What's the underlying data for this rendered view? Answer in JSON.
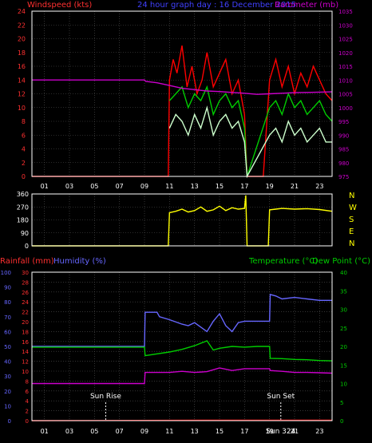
{
  "chart_data": [
    {
      "type": "line",
      "panel": "wind-baro",
      "title": "24 hour graph day : 16 December 2015",
      "left_axis_label": "Windspeed (kts)",
      "right_axis_label": "Barometer (mb)",
      "left_ticks": [
        0,
        2,
        4,
        6,
        8,
        10,
        12,
        14,
        16,
        18,
        20,
        22,
        24
      ],
      "right_ticks": [
        975,
        980,
        985,
        990,
        995,
        1000,
        1005,
        1010,
        1015,
        1020,
        1025,
        1030,
        1035
      ],
      "x_ticks": [
        "01",
        "03",
        "05",
        "07",
        "09",
        "11",
        "13",
        "15",
        "17",
        "19",
        "21",
        "23"
      ],
      "xlim": [
        0,
        24
      ],
      "ylim_left": [
        0,
        24
      ],
      "ylim_right": [
        975,
        1035
      ],
      "colors": {
        "gust": "#ff0000",
        "wind": "#00cc00",
        "wind_light": "#ccffcc",
        "baro": "#cc00cc",
        "frame": "#ffffff",
        "grid": "#555555"
      },
      "series": [
        {
          "name": "gust",
          "x": [
            0,
            10.9,
            11.0,
            11.3,
            11.6,
            12.0,
            12.4,
            12.8,
            13.2,
            13.6,
            14.0,
            14.5,
            15.0,
            15.5,
            16.0,
            16.5,
            17.0,
            17.2,
            17.6,
            18.0,
            18.5,
            19.0,
            19.5,
            20.0,
            20.5,
            21.0,
            21.5,
            22.0,
            22.5,
            23.0,
            23.5,
            24.0
          ],
          "y": [
            0,
            0,
            14,
            17,
            15,
            19,
            13,
            16,
            12,
            14,
            18,
            13,
            15,
            17,
            12,
            14,
            9,
            0,
            0,
            0,
            0,
            14,
            17,
            13,
            16,
            12,
            15,
            13,
            16,
            14,
            12,
            11
          ]
        },
        {
          "name": "wind",
          "x": [
            11.0,
            11.5,
            12.0,
            12.5,
            13.0,
            13.5,
            14.0,
            14.5,
            15.0,
            15.5,
            16.0,
            16.5,
            17.0,
            17.2,
            19.0,
            19.5,
            20.0,
            20.5,
            21.0,
            21.5,
            22.0,
            22.5,
            23.0,
            23.5,
            24.0
          ],
          "y": [
            11,
            12,
            13,
            10,
            12,
            11,
            13,
            9,
            11,
            12,
            10,
            11,
            7,
            0,
            10,
            11,
            9,
            12,
            10,
            11,
            9,
            10,
            11,
            9,
            8
          ]
        },
        {
          "name": "wind_light",
          "x": [
            11.0,
            11.5,
            12.0,
            12.5,
            13.0,
            13.5,
            14.0,
            14.5,
            15.0,
            15.5,
            16.0,
            16.5,
            17.0,
            17.2,
            19.0,
            19.5,
            20.0,
            20.5,
            21.0,
            21.5,
            22.0,
            22.5,
            23.0,
            23.5,
            24.0
          ],
          "y": [
            7,
            9,
            8,
            6,
            9,
            7,
            10,
            6,
            8,
            9,
            7,
            8,
            5,
            0,
            6,
            7,
            5,
            8,
            6,
            7,
            5,
            6,
            7,
            5,
            5
          ]
        },
        {
          "name": "baro",
          "x": [
            0,
            9.0,
            9.1,
            10.0,
            11.0,
            12.0,
            13.0,
            14.0,
            15.0,
            16.0,
            17.0,
            18.0,
            19.0,
            20.0,
            21.0,
            22.0,
            23.0,
            24.0
          ],
          "y": [
            1010,
            1010,
            1009.5,
            1009,
            1008,
            1007,
            1006.5,
            1006,
            1005.8,
            1005.5,
            1005.2,
            1004.8,
            1005.0,
            1005.2,
            1005.4,
            1005.5,
            1005.6,
            1005.7
          ]
        }
      ]
    },
    {
      "type": "line",
      "panel": "direction",
      "left_ticks": [
        0,
        90,
        180,
        270,
        360
      ],
      "right_labels": [
        "N",
        "W",
        "S",
        "E",
        "N"
      ],
      "xlim": [
        0,
        24
      ],
      "ylim": [
        0,
        360
      ],
      "colors": {
        "direction": "#ffff00"
      },
      "series": [
        {
          "name": "direction",
          "x": [
            0,
            10.9,
            11.0,
            11.5,
            12.0,
            12.5,
            13.0,
            13.5,
            14.0,
            14.5,
            15.0,
            15.5,
            16.0,
            16.5,
            17.0,
            17.1,
            17.2,
            18.9,
            19.0,
            19.5,
            20.0,
            21.0,
            22.0,
            23.0,
            24.0
          ],
          "y": [
            0,
            0,
            230,
            240,
            255,
            235,
            245,
            270,
            240,
            250,
            275,
            245,
            265,
            255,
            260,
            350,
            0,
            0,
            250,
            255,
            260,
            255,
            258,
            252,
            240
          ]
        }
      ]
    },
    {
      "type": "line",
      "panel": "rain-hum-temp",
      "left1_label": "Rainfall (mm)",
      "left2_label": "Humidity (%)",
      "right1_label": "Temperature (°C)",
      "right2_label": "Dew Point (°C)",
      "rain_ticks": [
        0,
        2,
        4,
        6,
        8,
        10,
        12,
        14,
        16,
        18,
        20,
        22,
        24,
        26,
        28,
        30
      ],
      "humidity_ticks": [
        0,
        10,
        20,
        30,
        40,
        50,
        60,
        70,
        80,
        90,
        100
      ],
      "temp_ticks": [
        0,
        5,
        10,
        15,
        20,
        25,
        30,
        35,
        40
      ],
      "x_ticks": [
        "01",
        "03",
        "05",
        "07",
        "09",
        "11",
        "13",
        "15",
        "17",
        "19",
        "21",
        "23"
      ],
      "xlim": [
        0,
        24
      ],
      "ylim_temp": [
        0,
        40
      ],
      "ylim_humidity": [
        0,
        100
      ],
      "sun_rise": {
        "label": "Sun Rise",
        "hour": 5.9
      },
      "sun_set": {
        "label": "Sun Set",
        "hour": 19.9
      },
      "sun_set_extra": {
        "label": "Sun 324",
        "hour": 19.9
      },
      "colors": {
        "humidity": "#6666ff",
        "temp": "#00cc00",
        "dew": "#cc00cc",
        "rain": "#ff0000",
        "rain_axis": "#ff3333",
        "hum_axis": "#6666ff",
        "temp_axis": "#00cc00"
      },
      "series": [
        {
          "name": "humidity",
          "x": [
            0,
            9.0,
            9.05,
            10.0,
            10.2,
            11.0,
            12.0,
            12.5,
            13.0,
            13.5,
            14.0,
            14.5,
            15.0,
            15.5,
            16.0,
            16.5,
            17.0,
            18.0,
            19.0,
            19.05,
            19.5,
            20.0,
            21.0,
            22.0,
            23.0,
            24.0
          ],
          "y": [
            50,
            50,
            73,
            73,
            70,
            68,
            65,
            64,
            66,
            63,
            60,
            67,
            72,
            64,
            60,
            66,
            67,
            67,
            67,
            85,
            84,
            82,
            83,
            82,
            81,
            81
          ]
        },
        {
          "name": "temp",
          "x": [
            0,
            9.0,
            9.05,
            11.0,
            12.0,
            13.0,
            14.0,
            14.5,
            15.0,
            16.0,
            17.0,
            18.0,
            19.0,
            19.05,
            20.0,
            21.0,
            22.0,
            23.0,
            24.0
          ],
          "y": [
            19.8,
            19.8,
            17.5,
            18.5,
            19.2,
            20.2,
            21.5,
            19,
            19.5,
            20.0,
            19.8,
            20.0,
            20.0,
            16.8,
            16.7,
            16.5,
            16.4,
            16.2,
            16.1
          ],
          "axis": "temp"
        },
        {
          "name": "dew",
          "x": [
            0,
            9.0,
            9.05,
            11.0,
            12.0,
            13.0,
            14.0,
            15.0,
            16.0,
            17.0,
            18.0,
            19.0,
            19.05,
            20.0,
            21.0,
            22.0,
            23.0,
            24.0
          ],
          "y": [
            10.0,
            10.0,
            13.0,
            13.0,
            13.3,
            13.0,
            13.2,
            14.2,
            13.5,
            14.0,
            14.0,
            14.0,
            13.5,
            13.3,
            13.0,
            13.0,
            12.9,
            12.8
          ],
          "axis": "temp"
        },
        {
          "name": "rain",
          "x": [
            0,
            14.0,
            24.0
          ],
          "y": [
            0,
            0.1,
            0.1
          ],
          "axis": "temp"
        }
      ]
    }
  ]
}
